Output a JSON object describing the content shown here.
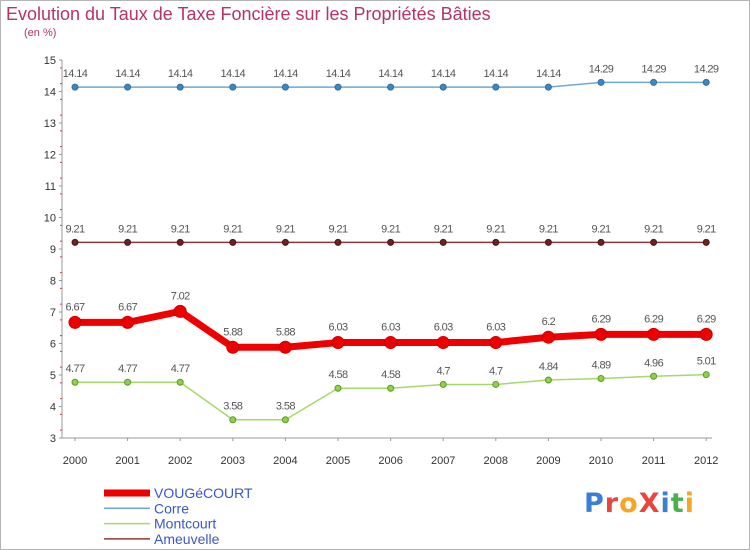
{
  "chart_data": {
    "type": "line",
    "title": "Evolution du Taux de Taxe Foncière sur les Propriétés Bâties",
    "ylabel": "(en %)",
    "xlabel": "",
    "ylim": [
      3,
      15
    ],
    "yticks": [
      "3",
      "4",
      "5",
      "6",
      "7",
      "8",
      "9",
      "10",
      "11",
      "12",
      "13",
      "14",
      "15"
    ],
    "categories": [
      "2000",
      "2001",
      "2002",
      "2003",
      "2004",
      "2005",
      "2006",
      "2007",
      "2008",
      "2009",
      "2010",
      "2011",
      "2012"
    ],
    "series": [
      {
        "name": "VOUGéCOURT",
        "color": "#ee0000",
        "values": [
          6.67,
          6.67,
          7.02,
          5.88,
          5.88,
          6.03,
          6.03,
          6.03,
          6.03,
          6.2,
          6.29,
          6.29,
          6.29
        ],
        "labels": [
          "6.67",
          "6.67",
          "7.02",
          "5.88",
          "5.88",
          "6.03",
          "6.03",
          "6.03",
          "6.03",
          "6.2",
          "6.29",
          "6.29",
          "6.29"
        ]
      },
      {
        "name": "Corre",
        "color": "#6fa8d6",
        "values": [
          14.14,
          14.14,
          14.14,
          14.14,
          14.14,
          14.14,
          14.14,
          14.14,
          14.14,
          14.14,
          14.29,
          14.29,
          14.29
        ],
        "labels": [
          "14.14",
          "14.14",
          "14.14",
          "14.14",
          "14.14",
          "14.14",
          "14.14",
          "14.14",
          "14.14",
          "14.14",
          "14.29",
          "14.29",
          "14.29"
        ]
      },
      {
        "name": "Montcourt",
        "color": "#a6d96a",
        "values": [
          4.77,
          4.77,
          4.77,
          3.58,
          3.58,
          4.58,
          4.58,
          4.7,
          4.7,
          4.84,
          4.89,
          4.96,
          5.01
        ],
        "labels": [
          "4.77",
          "4.77",
          "4.77",
          "3.58",
          "3.58",
          "4.58",
          "4.58",
          "4.7",
          "4.7",
          "4.84",
          "4.89",
          "4.96",
          "5.01"
        ]
      },
      {
        "name": "Ameuvelle",
        "color": "#8b3a3a",
        "values": [
          9.21,
          9.21,
          9.21,
          9.21,
          9.21,
          9.21,
          9.21,
          9.21,
          9.21,
          9.21,
          9.21,
          9.21,
          9.21
        ],
        "labels": [
          "9.21",
          "9.21",
          "9.21",
          "9.21",
          "9.21",
          "9.21",
          "9.21",
          "9.21",
          "9.21",
          "9.21",
          "9.21",
          "9.21",
          "9.21"
        ]
      }
    ],
    "legend_position": "bottom-left",
    "grid": false
  },
  "logo": {
    "text": "ProXiti",
    "colors": [
      "#3b7fd4",
      "#e8453c",
      "#f5a623",
      "#e8453c",
      "#3b7fd4",
      "#4caf50",
      "#f5a623"
    ]
  }
}
